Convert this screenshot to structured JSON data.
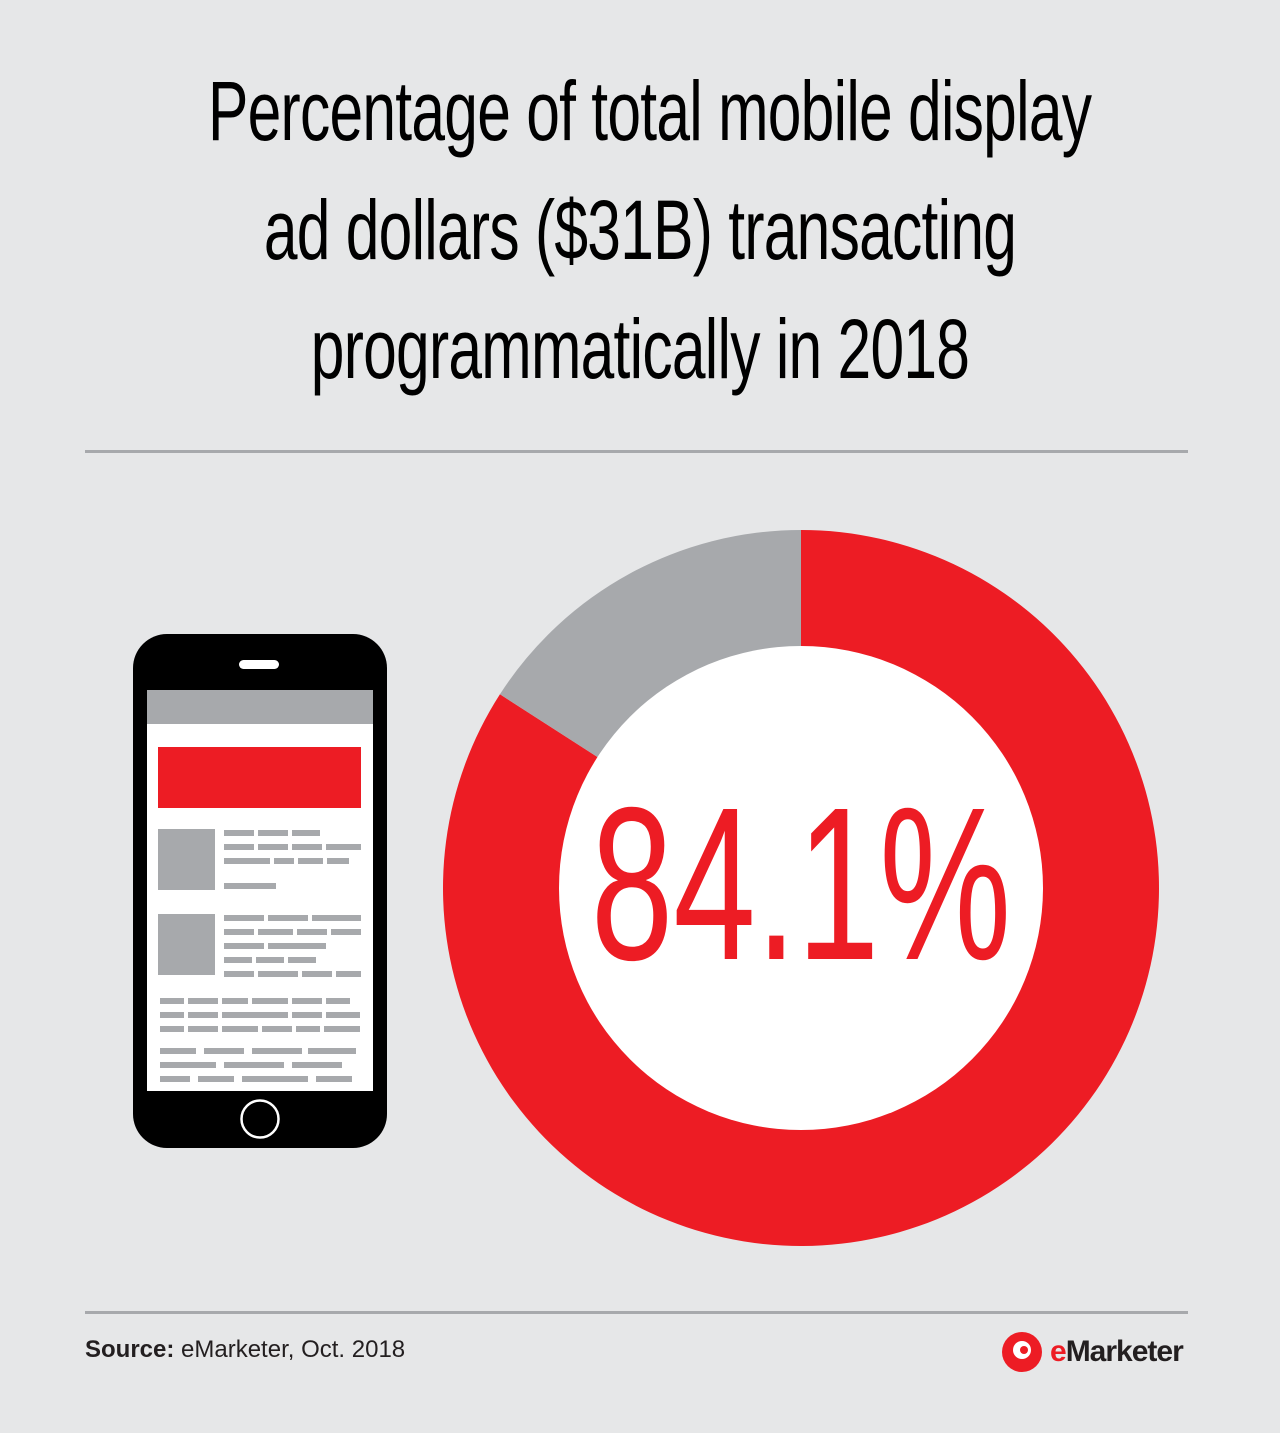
{
  "title_lines": [
    "Percentage of total mobile display",
    "ad dollars ($31B) transacting",
    "programmatically in 2018"
  ],
  "chart_data": {
    "type": "pie",
    "variant": "donut",
    "center_label": "84.1%",
    "slices": [
      {
        "value": 84.1,
        "color": "#ed1c24"
      },
      {
        "value": 15.9,
        "color": "#a7a9ac"
      }
    ]
  },
  "colors": {
    "accent": "#ed1c24",
    "gray": "#a7a9ac",
    "background": "#e6e7e8"
  },
  "icons": {
    "phone": "smartphone-icon",
    "logo": "emarketer-logo-icon"
  },
  "footer": {
    "source_label": "Source:",
    "source_text": "eMarketer, Oct. 2018",
    "brand_e": "e",
    "brand_rest": "Marketer"
  }
}
